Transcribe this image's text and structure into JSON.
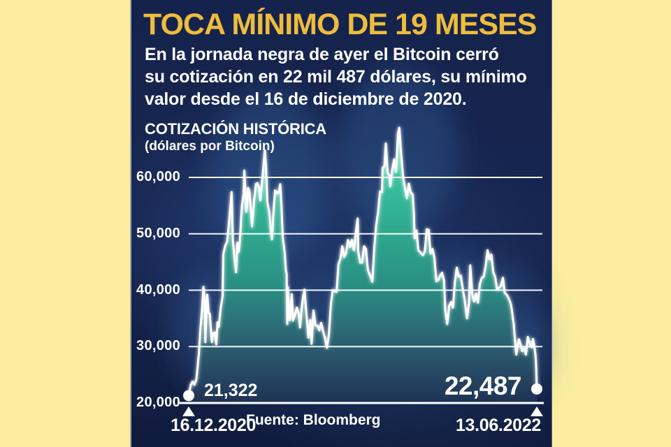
{
  "infographic": {
    "title": "TOCA MÍNIMO DE 19 MESES",
    "body_lines": [
      "En la jornada negra de ayer el Bitcoin cerró",
      "su cotización en 22 mil 487 dólares, su mínimo",
      "valor desde el 16 de diciembre de 2020."
    ]
  },
  "colors": {
    "accent_gold": "#eebc3d",
    "panel_navy": "#16244e",
    "side_yellow": "#fbeea0",
    "area_teal_top": "#52d9b0",
    "area_teal_mid": "#2ea68c",
    "line_white": "#ffffff"
  },
  "chart_data": {
    "type": "area",
    "title": "COTIZACIÓN HISTÓRICA",
    "subtitle": "(dólares por Bitcoin)",
    "source": "Fuente: Bloomberg",
    "grid": true,
    "legend": "none",
    "ylim": [
      20000,
      70000
    ],
    "yticks": [
      60000,
      50000,
      40000,
      30000,
      20000
    ],
    "ytick_labels": [
      "60,000",
      "50,000",
      "40,000",
      "30,000",
      "20,000"
    ],
    "x_start_label": "16.12.2020",
    "x_end_label": "13.06.2022",
    "x_span_days": 544,
    "start_annotation": "21,322",
    "end_annotation": "22,487",
    "start_value": 21322,
    "end_value": 22487,
    "series": [
      {
        "name": "Bitcoin (USD)",
        "points": [
          [
            0,
            21322
          ],
          [
            3,
            23100
          ],
          [
            6,
            23800
          ],
          [
            9,
            23250
          ],
          [
            12,
            24200
          ],
          [
            14,
            26500
          ],
          [
            16,
            28900
          ],
          [
            18,
            32800
          ],
          [
            21,
            36800
          ],
          [
            23,
            40600
          ],
          [
            25,
            38300
          ],
          [
            26,
            30800
          ],
          [
            28,
            37300
          ],
          [
            29,
            39200
          ],
          [
            31,
            36000
          ],
          [
            33,
            35800
          ],
          [
            36,
            30800
          ],
          [
            38,
            32300
          ],
          [
            41,
            32500
          ],
          [
            43,
            30400
          ],
          [
            45,
            34300
          ],
          [
            47,
            33500
          ],
          [
            50,
            36900
          ],
          [
            53,
            38900
          ],
          [
            54,
            46400
          ],
          [
            57,
            47900
          ],
          [
            60,
            48600
          ],
          [
            63,
            52100
          ],
          [
            66,
            55900
          ],
          [
            67,
            57400
          ],
          [
            69,
            48800
          ],
          [
            71,
            46300
          ],
          [
            74,
            43200
          ],
          [
            76,
            48400
          ],
          [
            78,
            46800
          ],
          [
            80,
            48800
          ],
          [
            83,
            54900
          ],
          [
            86,
            57300
          ],
          [
            87,
            61200
          ],
          [
            90,
            53900
          ],
          [
            93,
            58100
          ],
          [
            95,
            57500
          ],
          [
            99,
            51300
          ],
          [
            102,
            55800
          ],
          [
            105,
            58800
          ],
          [
            107,
            59000
          ],
          [
            110,
            58200
          ],
          [
            112,
            55900
          ],
          [
            115,
            59800
          ],
          [
            118,
            63500
          ],
          [
            119,
            64800
          ],
          [
            121,
            61400
          ],
          [
            123,
            55600
          ],
          [
            126,
            53800
          ],
          [
            128,
            51100
          ],
          [
            130,
            49000
          ],
          [
            133,
            54900
          ],
          [
            135,
            57700
          ],
          [
            138,
            57200
          ],
          [
            141,
            57400
          ],
          [
            143,
            58800
          ],
          [
            145,
            55000
          ],
          [
            147,
            49400
          ],
          [
            150,
            46700
          ],
          [
            152,
            43500
          ],
          [
            153,
            42900
          ],
          [
            154,
            34000
          ],
          [
            155,
            40500
          ],
          [
            156,
            37300
          ],
          [
            158,
            34700
          ],
          [
            161,
            39300
          ],
          [
            163,
            34600
          ],
          [
            166,
            35600
          ],
          [
            169,
            36900
          ],
          [
            172,
            35800
          ],
          [
            174,
            33400
          ],
          [
            177,
            37300
          ],
          [
            179,
            39000
          ],
          [
            181,
            40100
          ],
          [
            184,
            35800
          ],
          [
            187,
            31600
          ],
          [
            190,
            34700
          ],
          [
            192,
            30500
          ],
          [
            195,
            36400
          ],
          [
            198,
            33800
          ],
          [
            201,
            33700
          ],
          [
            204,
            32900
          ],
          [
            207,
            34200
          ],
          [
            210,
            32800
          ],
          [
            213,
            31500
          ],
          [
            216,
            29800
          ],
          [
            219,
            32100
          ],
          [
            222,
            37300
          ],
          [
            225,
            40000
          ],
          [
            228,
            39900
          ],
          [
            231,
            39700
          ],
          [
            234,
            44600
          ],
          [
            237,
            45600
          ],
          [
            240,
            47800
          ],
          [
            243,
            45900
          ],
          [
            246,
            46700
          ],
          [
            249,
            48900
          ],
          [
            252,
            47700
          ],
          [
            255,
            48900
          ],
          [
            258,
            47100
          ],
          [
            261,
            50000
          ],
          [
            264,
            52700
          ],
          [
            265,
            46800
          ],
          [
            268,
            44900
          ],
          [
            271,
            44900
          ],
          [
            274,
            47800
          ],
          [
            277,
            47300
          ],
          [
            280,
            43600
          ],
          [
            283,
            42700
          ],
          [
            285,
            42200
          ],
          [
            287,
            41500
          ],
          [
            290,
            47700
          ],
          [
            293,
            51500
          ],
          [
            296,
            53900
          ],
          [
            299,
            57500
          ],
          [
            302,
            57400
          ],
          [
            303,
            61700
          ],
          [
            306,
            62000
          ],
          [
            308,
            66000
          ],
          [
            311,
            60700
          ],
          [
            314,
            60300
          ],
          [
            315,
            58400
          ],
          [
            318,
            61300
          ],
          [
            321,
            63200
          ],
          [
            324,
            61000
          ],
          [
            327,
            67600
          ],
          [
            329,
            68800
          ],
          [
            332,
            64400
          ],
          [
            335,
            60100
          ],
          [
            338,
            58100
          ],
          [
            341,
            56300
          ],
          [
            344,
            58900
          ],
          [
            347,
            57300
          ],
          [
            350,
            57000
          ],
          [
            352,
            53600
          ],
          [
            353,
            49200
          ],
          [
            356,
            50600
          ],
          [
            359,
            47100
          ],
          [
            362,
            46700
          ],
          [
            366,
            46200
          ],
          [
            369,
            46900
          ],
          [
            372,
            50800
          ],
          [
            375,
            50700
          ],
          [
            378,
            46500
          ],
          [
            381,
            47300
          ],
          [
            384,
            45800
          ],
          [
            387,
            41600
          ],
          [
            390,
            41800
          ],
          [
            393,
            42600
          ],
          [
            396,
            43100
          ],
          [
            399,
            41700
          ],
          [
            401,
            36400
          ],
          [
            404,
            34000
          ],
          [
            407,
            37200
          ],
          [
            410,
            37900
          ],
          [
            413,
            36900
          ],
          [
            416,
            41500
          ],
          [
            419,
            44000
          ],
          [
            422,
            42400
          ],
          [
            425,
            42600
          ],
          [
            428,
            40500
          ],
          [
            431,
            38400
          ],
          [
            435,
            35000
          ],
          [
            438,
            37700
          ],
          [
            440,
            44400
          ],
          [
            443,
            39400
          ],
          [
            446,
            38000
          ],
          [
            449,
            39400
          ],
          [
            452,
            37800
          ],
          [
            455,
            41100
          ],
          [
            458,
            42200
          ],
          [
            461,
            42400
          ],
          [
            464,
            44300
          ],
          [
            467,
            47100
          ],
          [
            470,
            45500
          ],
          [
            473,
            46300
          ],
          [
            476,
            43200
          ],
          [
            479,
            42300
          ],
          [
            482,
            40100
          ],
          [
            485,
            40400
          ],
          [
            488,
            40800
          ],
          [
            491,
            42200
          ],
          [
            494,
            39500
          ],
          [
            497,
            39200
          ],
          [
            500,
            38600
          ],
          [
            503,
            37700
          ],
          [
            505,
            36500
          ],
          [
            508,
            34000
          ],
          [
            510,
            31000
          ],
          [
            512,
            28600
          ],
          [
            514,
            30100
          ],
          [
            516,
            31300
          ],
          [
            519,
            30300
          ],
          [
            521,
            29200
          ],
          [
            524,
            29700
          ],
          [
            527,
            28600
          ],
          [
            530,
            31700
          ],
          [
            533,
            30500
          ],
          [
            536,
            29900
          ],
          [
            538,
            31350
          ],
          [
            540,
            30200
          ],
          [
            542,
            28400
          ],
          [
            543,
            26600
          ],
          [
            544,
            22487
          ]
        ]
      }
    ]
  }
}
